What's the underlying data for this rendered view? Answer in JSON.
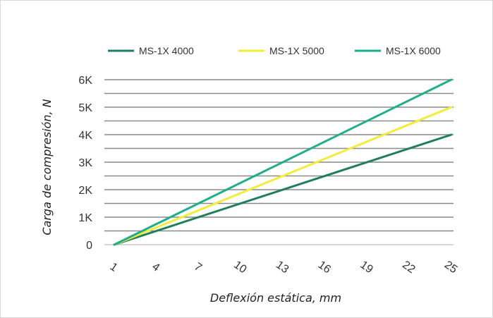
{
  "chart_data": {
    "type": "line",
    "title": "",
    "xlabel": "Deflexión estática, mm",
    "ylabel": "Carga de compresión, N",
    "x_ticks": [
      "1",
      "4",
      "7",
      "10",
      "13",
      "16",
      "19",
      "22",
      "25"
    ],
    "y_ticks": [
      "0",
      "1K",
      "2K",
      "3K",
      "4K",
      "5K",
      "6K"
    ],
    "xlim": [
      1,
      25
    ],
    "ylim": [
      0,
      6000
    ],
    "grid": "horizontal",
    "legend_position": "top",
    "series": [
      {
        "name": "MS-1X 4000",
        "color": "#1f7f5c",
        "x": [
          1,
          25
        ],
        "y": [
          0,
          4000
        ]
      },
      {
        "name": "MS-1X 5000",
        "color": "#f2ec3a",
        "x": [
          1,
          25
        ],
        "y": [
          0,
          5000
        ]
      },
      {
        "name": "MS-1X 6000",
        "color": "#1fae8c",
        "x": [
          1,
          25
        ],
        "y": [
          0,
          6000
        ]
      }
    ]
  }
}
